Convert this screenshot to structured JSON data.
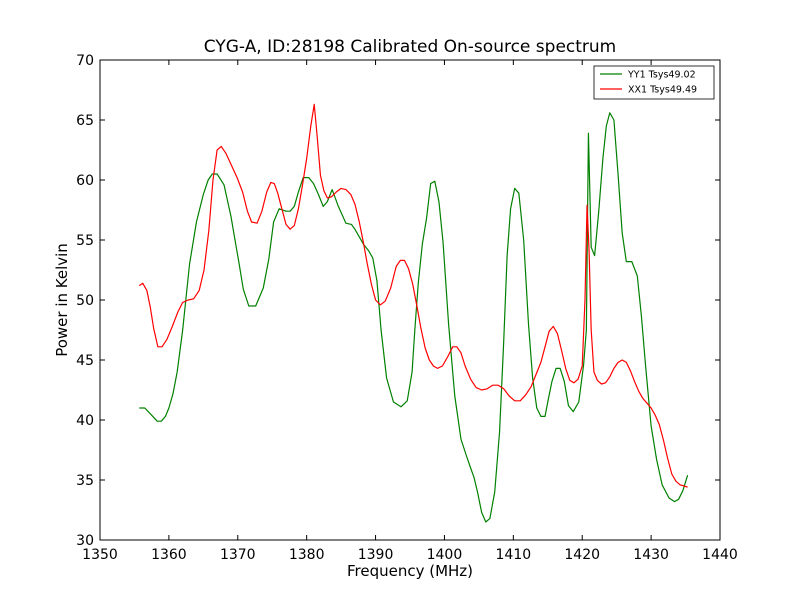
{
  "chart_data": {
    "type": "line",
    "title": "CYG-A, ID:28198 Calibrated On-source spectrum",
    "xlabel": "Frequency (MHz)",
    "ylabel": "Power in Kelvin",
    "xlim": [
      1350,
      1440
    ],
    "ylim": [
      30,
      70
    ],
    "xticks": [
      1350,
      1360,
      1370,
      1380,
      1390,
      1400,
      1410,
      1420,
      1430,
      1440
    ],
    "yticks": [
      30,
      35,
      40,
      45,
      50,
      55,
      60,
      65,
      70
    ],
    "grid": false,
    "legend_position": "top-right",
    "series": [
      {
        "name": "YY1 Tsys49.02",
        "color": "#008000",
        "x": [
          1355.7,
          1356.5,
          1357.5,
          1358.3,
          1358.9,
          1359.5,
          1360.0,
          1360.6,
          1361.2,
          1362.0,
          1363.0,
          1364.0,
          1365.0,
          1365.7,
          1366.3,
          1367.0,
          1368.0,
          1369.0,
          1369.6,
          1370.2,
          1370.8,
          1371.6,
          1372.6,
          1373.7,
          1374.5,
          1375.2,
          1376.0,
          1377.0,
          1377.6,
          1378.2,
          1378.8,
          1379.5,
          1380.3,
          1381.0,
          1381.7,
          1382.4,
          1383.0,
          1383.7,
          1384.6,
          1385.7,
          1386.5,
          1387.0,
          1387.6,
          1388.3,
          1389.0,
          1389.6,
          1390.2,
          1390.8,
          1391.6,
          1392.6,
          1393.7,
          1394.6,
          1395.3,
          1395.7,
          1396.2,
          1396.8,
          1397.4,
          1398.0,
          1398.6,
          1399.2,
          1399.8,
          1400.6,
          1401.5,
          1402.4,
          1403.2,
          1403.8,
          1404.3,
          1404.8,
          1405.4,
          1406.0,
          1406.6,
          1407.3,
          1408.0,
          1408.6,
          1409.1,
          1409.6,
          1410.2,
          1410.8,
          1411.5,
          1412.2,
          1412.8,
          1413.4,
          1414.0,
          1414.6,
          1415.1,
          1415.6,
          1416.2,
          1416.8,
          1417.4,
          1418.0,
          1418.7,
          1419.5,
          1420.2,
          1420.6,
          1420.9,
          1421.3,
          1421.8,
          1422.4,
          1423.0,
          1423.5,
          1424.0,
          1424.6,
          1425.2,
          1425.8,
          1426.4,
          1427.2,
          1428.0,
          1428.6,
          1429.2,
          1430.0,
          1430.8,
          1431.6,
          1432.6,
          1433.4,
          1434.0,
          1434.6,
          1435.3
        ],
        "values": [
          41.0,
          41.0,
          40.4,
          39.9,
          39.9,
          40.3,
          41.0,
          42.2,
          44.0,
          47.5,
          53.0,
          56.5,
          58.8,
          60.0,
          60.5,
          60.5,
          59.6,
          57.0,
          55.0,
          53.0,
          50.9,
          49.5,
          49.5,
          51.0,
          53.4,
          56.5,
          57.6,
          57.4,
          57.4,
          57.8,
          59.0,
          60.2,
          60.2,
          59.7,
          58.8,
          57.8,
          58.2,
          59.2,
          57.8,
          56.4,
          56.3,
          55.9,
          55.3,
          54.6,
          54.1,
          53.5,
          51.6,
          47.5,
          43.5,
          41.5,
          41.1,
          41.6,
          44.0,
          47.5,
          51.4,
          54.7,
          56.8,
          59.7,
          59.9,
          58.2,
          54.8,
          48.0,
          42.0,
          38.4,
          37.0,
          36.0,
          35.2,
          34.0,
          32.3,
          31.5,
          31.8,
          34.0,
          39.0,
          46.5,
          53.7,
          57.6,
          59.3,
          58.9,
          55.0,
          48.0,
          43.5,
          41.0,
          40.3,
          40.3,
          41.8,
          43.2,
          44.3,
          44.3,
          43.2,
          41.2,
          40.7,
          41.5,
          44.6,
          47.5,
          63.9,
          54.4,
          53.7,
          57.4,
          61.8,
          64.5,
          65.6,
          65.0,
          60.5,
          55.6,
          53.2,
          53.2,
          52.0,
          48.6,
          44.5,
          39.5,
          36.7,
          34.6,
          33.5,
          33.2,
          33.4,
          34.1,
          35.4
        ]
      },
      {
        "name": "XX1 Tsys49.49",
        "color": "#ff0000",
        "x": [
          1355.7,
          1356.2,
          1356.8,
          1357.3,
          1357.8,
          1358.4,
          1359.0,
          1359.7,
          1360.5,
          1361.3,
          1362.0,
          1362.8,
          1363.6,
          1364.4,
          1365.1,
          1365.8,
          1366.4,
          1367.0,
          1367.6,
          1368.3,
          1369.1,
          1369.9,
          1370.7,
          1371.4,
          1372.0,
          1372.8,
          1373.5,
          1374.2,
          1374.8,
          1375.3,
          1375.8,
          1376.4,
          1377.0,
          1377.6,
          1378.2,
          1378.8,
          1379.4,
          1380.0,
          1380.6,
          1381.1,
          1381.5,
          1382.0,
          1382.5,
          1383.0,
          1383.6,
          1384.3,
          1385.0,
          1385.7,
          1386.4,
          1387.0,
          1387.6,
          1388.2,
          1388.8,
          1389.4,
          1390.0,
          1390.7,
          1391.4,
          1392.2,
          1393.0,
          1393.6,
          1394.2,
          1394.8,
          1395.4,
          1396.0,
          1396.6,
          1397.2,
          1397.8,
          1398.4,
          1399.0,
          1399.7,
          1400.5,
          1401.2,
          1401.8,
          1402.4,
          1403.0,
          1403.8,
          1404.6,
          1405.4,
          1406.2,
          1407.0,
          1407.8,
          1408.6,
          1409.4,
          1410.2,
          1411.0,
          1411.8,
          1412.6,
          1413.3,
          1414.0,
          1414.6,
          1415.2,
          1415.8,
          1416.4,
          1417.0,
          1417.6,
          1418.2,
          1418.8,
          1419.4,
          1420.0,
          1420.4,
          1420.7,
          1421.0,
          1421.3,
          1421.7,
          1422.2,
          1422.8,
          1423.4,
          1424.0,
          1424.6,
          1425.2,
          1425.8,
          1426.4,
          1427.0,
          1427.6,
          1428.2,
          1428.8,
          1429.4,
          1430.0,
          1430.6,
          1431.2,
          1431.8,
          1432.4,
          1433.0,
          1433.6,
          1434.2,
          1434.8,
          1435.3
        ],
        "values": [
          51.2,
          51.4,
          50.8,
          49.4,
          47.6,
          46.1,
          46.1,
          46.7,
          47.8,
          49.0,
          49.8,
          50.0,
          50.1,
          50.8,
          52.5,
          55.8,
          60.0,
          62.5,
          62.8,
          62.2,
          61.2,
          60.2,
          59.0,
          57.4,
          56.5,
          56.4,
          57.4,
          59.0,
          59.8,
          59.7,
          58.9,
          57.6,
          56.3,
          55.9,
          56.2,
          57.6,
          59.6,
          61.8,
          64.5,
          66.3,
          63.8,
          60.4,
          59.1,
          58.5,
          58.6,
          59.0,
          59.3,
          59.2,
          58.8,
          58.0,
          56.6,
          54.9,
          53.0,
          51.3,
          50.0,
          49.6,
          49.9,
          51.0,
          52.8,
          53.3,
          53.3,
          52.6,
          51.3,
          49.5,
          47.6,
          46.0,
          45.0,
          44.5,
          44.3,
          44.5,
          45.3,
          46.1,
          46.1,
          45.6,
          44.5,
          43.4,
          42.7,
          42.5,
          42.6,
          42.9,
          42.9,
          42.6,
          42.0,
          41.6,
          41.6,
          42.1,
          42.8,
          43.8,
          44.8,
          46.1,
          47.4,
          47.8,
          47.2,
          45.8,
          44.3,
          43.3,
          43.1,
          43.4,
          44.5,
          50.0,
          57.9,
          54.0,
          47.5,
          44.0,
          43.3,
          43.0,
          43.1,
          43.6,
          44.3,
          44.8,
          45.0,
          44.8,
          44.1,
          43.2,
          42.4,
          41.8,
          41.4,
          41.0,
          40.4,
          39.6,
          38.3,
          36.8,
          35.5,
          34.9,
          34.6,
          34.5,
          34.4
        ]
      }
    ]
  }
}
